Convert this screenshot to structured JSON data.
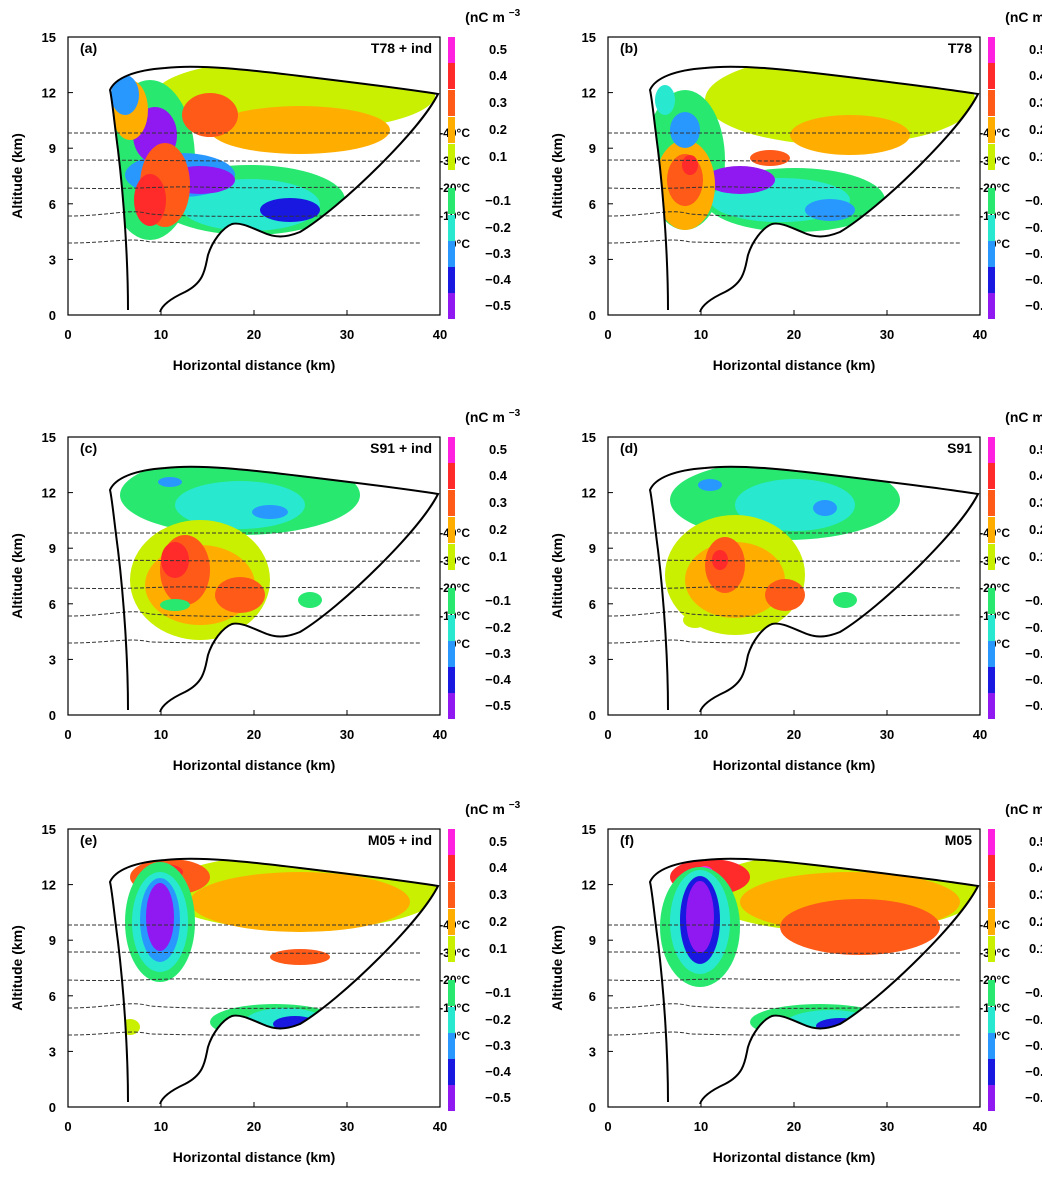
{
  "shared": {
    "ylabel": "Altitude (km)",
    "xlabel": "Horizontal distance (km)",
    "unit": "(nC m",
    "unit_exp": "−3",
    "unit_close": ")",
    "xticks": [
      "0",
      "10",
      "20",
      "30",
      "40"
    ],
    "yticks": [
      "0",
      "3",
      "6",
      "9",
      "12",
      "15"
    ],
    "isotherms": [
      "-40°C",
      "-30°C",
      "-20°C",
      "-10°C",
      "0°C"
    ],
    "colorbar_labels": [
      "0.5",
      "0.4",
      "0.3",
      "0.2",
      "0.1",
      "−0.1",
      "−0.2",
      "−0.3",
      "−0.4",
      "−0.5"
    ],
    "colors": {
      "pos_05": "#ff20e0",
      "pos_04": "#ff2a2a",
      "pos_03": "#ff5a18",
      "pos_02": "#ffae00",
      "pos_01": "#c8f000",
      "neg_01": "#28e870",
      "neg_02": "#28e8d0",
      "neg_03": "#2898ff",
      "neg_04": "#1818e0",
      "neg_05": "#9018f0"
    }
  },
  "panels": [
    {
      "label": "(a)",
      "scheme": "T78 + ind"
    },
    {
      "label": "(b)",
      "scheme": "T78"
    },
    {
      "label": "(c)",
      "scheme": "S91 + ind"
    },
    {
      "label": "(d)",
      "scheme": "S91"
    },
    {
      "label": "(e)",
      "scheme": "M05 + ind"
    },
    {
      "label": "(f)",
      "scheme": "M05"
    }
  ],
  "chart_data": [
    {
      "type": "heatmap",
      "title": "(a) T78 + ind",
      "xlabel": "Horizontal distance (km)",
      "ylabel": "Altitude (km)",
      "xlim": [
        0,
        40
      ],
      "ylim": [
        0,
        15
      ],
      "zunit": "nC m-3",
      "levels": [
        -0.5,
        -0.4,
        -0.3,
        -0.2,
        -0.1,
        0.1,
        0.2,
        0.3,
        0.4,
        0.5
      ]
    },
    {
      "type": "heatmap",
      "title": "(b) T78",
      "xlabel": "Horizontal distance (km)",
      "ylabel": "Altitude (km)",
      "xlim": [
        0,
        40
      ],
      "ylim": [
        0,
        15
      ],
      "zunit": "nC m-3",
      "levels": [
        -0.5,
        -0.4,
        -0.3,
        -0.2,
        -0.1,
        0.1,
        0.2,
        0.3,
        0.4,
        0.5
      ]
    },
    {
      "type": "heatmap",
      "title": "(c) S91 + ind",
      "xlabel": "Horizontal distance (km)",
      "ylabel": "Altitude (km)",
      "xlim": [
        0,
        40
      ],
      "ylim": [
        0,
        15
      ],
      "zunit": "nC m-3",
      "levels": [
        -0.5,
        -0.4,
        -0.3,
        -0.2,
        -0.1,
        0.1,
        0.2,
        0.3,
        0.4,
        0.5
      ]
    },
    {
      "type": "heatmap",
      "title": "(d) S91",
      "xlabel": "Horizontal distance (km)",
      "ylabel": "Altitude (km)",
      "xlim": [
        0,
        40
      ],
      "ylim": [
        0,
        15
      ],
      "zunit": "nC m-3",
      "levels": [
        -0.5,
        -0.4,
        -0.3,
        -0.2,
        -0.1,
        0.1,
        0.2,
        0.3,
        0.4,
        0.5
      ]
    },
    {
      "type": "heatmap",
      "title": "(e) M05 + ind",
      "xlabel": "Horizontal distance (km)",
      "ylabel": "Altitude (km)",
      "xlim": [
        0,
        40
      ],
      "ylim": [
        0,
        15
      ],
      "zunit": "nC m-3",
      "levels": [
        -0.5,
        -0.4,
        -0.3,
        -0.2,
        -0.1,
        0.1,
        0.2,
        0.3,
        0.4,
        0.5
      ]
    },
    {
      "type": "heatmap",
      "title": "(f) M05",
      "xlabel": "Horizontal distance (km)",
      "ylabel": "Altitude (km)",
      "xlim": [
        0,
        40
      ],
      "ylim": [
        0,
        15
      ],
      "zunit": "nC m-3",
      "levels": [
        -0.5,
        -0.4,
        -0.3,
        -0.2,
        -0.1,
        0.1,
        0.2,
        0.3,
        0.4,
        0.5
      ]
    }
  ]
}
